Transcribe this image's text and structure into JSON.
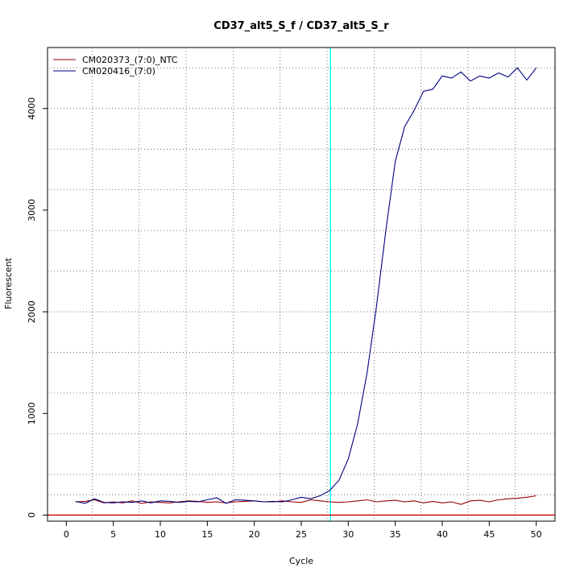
{
  "chart_data": {
    "type": "line",
    "title": "CD37_alt5_S_f / CD37_alt5_S_r",
    "xlabel": "Cycle",
    "ylabel": "Fluorescent",
    "xlim": [
      -2,
      52
    ],
    "ylim": [
      -60,
      4600
    ],
    "x_ticks": [
      0,
      5,
      10,
      15,
      20,
      25,
      30,
      35,
      40,
      45,
      50
    ],
    "y_ticks": [
      0,
      1000,
      2000,
      3000,
      4000
    ],
    "grid": true,
    "grid_style": "dotted",
    "grid_x": [
      2.75,
      7.75,
      12.75,
      17.75,
      22.75,
      27.75,
      32.75,
      37.75,
      42.75,
      47.75
    ],
    "grid_y": [
      200,
      400,
      800,
      1200,
      1600,
      2000,
      2400,
      2800,
      3200,
      3600,
      4000,
      4400
    ],
    "threshold_cycle": 28.1,
    "threshold_color": "#00ffff",
    "baseline_value": 0,
    "baseline_color": "#cc0000",
    "legend_position": "top-left",
    "x": [
      1,
      2,
      3,
      4,
      5,
      6,
      7,
      8,
      9,
      10,
      11,
      12,
      13,
      14,
      15,
      16,
      17,
      18,
      19,
      20,
      21,
      22,
      23,
      24,
      25,
      26,
      27,
      28,
      29,
      30,
      31,
      32,
      33,
      34,
      35,
      36,
      37,
      38,
      39,
      40,
      41,
      42,
      43,
      44,
      45,
      46,
      47,
      48,
      49,
      50
    ],
    "series": [
      {
        "name": "CM020373_(7:0)_NTC",
        "color": "#990000",
        "values": [
          130,
          135,
          150,
          120,
          130,
          120,
          140,
          115,
          130,
          125,
          120,
          130,
          140,
          135,
          125,
          130,
          120,
          130,
          135,
          140,
          130,
          130,
          140,
          130,
          125,
          150,
          140,
          130,
          125,
          130,
          140,
          150,
          130,
          140,
          145,
          130,
          140,
          120,
          135,
          120,
          130,
          105,
          140,
          145,
          130,
          150,
          160,
          165,
          175,
          190
        ]
      },
      {
        "name": "CM020416_(7:0)",
        "color": "#000080",
        "values": [
          135,
          115,
          160,
          125,
          120,
          130,
          125,
          140,
          120,
          140,
          135,
          125,
          135,
          130,
          150,
          170,
          115,
          150,
          145,
          140,
          130,
          135,
          130,
          150,
          175,
          160,
          190,
          240,
          340,
          550,
          900,
          1400,
          2050,
          2800,
          3480,
          3820,
          3980,
          4170,
          4190,
          4320,
          4300,
          4360,
          4270,
          4320,
          4300,
          4350,
          4310,
          4400,
          4280,
          4400
        ]
      }
    ]
  }
}
